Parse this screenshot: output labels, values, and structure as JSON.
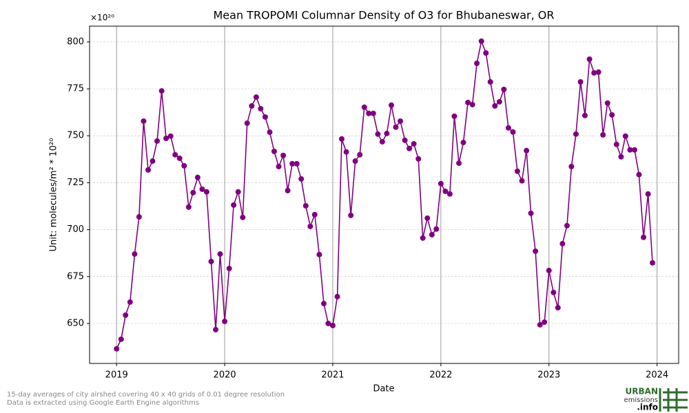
{
  "chart_data": {
    "type": "line",
    "title": "Mean TROPOMI Columnar Density of O3 for Bhubaneswar, OR",
    "x_label": "Date",
    "y_label": "Unit: molecules/m² * 10²⁰",
    "y_offset_label": "×10²⁰",
    "color": "#800080",
    "grid": true,
    "xlim": [
      2018.75,
      2024.2
    ],
    "ylim": [
      628.7,
      808.4
    ],
    "xticks": [
      2019,
      2020,
      2021,
      2022,
      2023,
      2024
    ],
    "yticks": [
      650,
      675,
      700,
      725,
      750,
      775,
      800
    ],
    "x": [
      2019.0,
      2019.042,
      2019.083,
      2019.125,
      2019.167,
      2019.208,
      2019.25,
      2019.292,
      2019.333,
      2019.375,
      2019.417,
      2019.458,
      2019.5,
      2019.542,
      2019.583,
      2019.625,
      2019.667,
      2019.708,
      2019.75,
      2019.792,
      2019.833,
      2019.875,
      2019.917,
      2019.958,
      2020.0,
      2020.042,
      2020.083,
      2020.125,
      2020.167,
      2020.208,
      2020.25,
      2020.292,
      2020.333,
      2020.375,
      2020.417,
      2020.458,
      2020.5,
      2020.542,
      2020.583,
      2020.625,
      2020.667,
      2020.708,
      2020.75,
      2020.792,
      2020.833,
      2020.875,
      2020.917,
      2020.958,
      2021.0,
      2021.042,
      2021.083,
      2021.125,
      2021.167,
      2021.208,
      2021.25,
      2021.292,
      2021.333,
      2021.375,
      2021.417,
      2021.458,
      2021.5,
      2021.542,
      2021.583,
      2021.625,
      2021.667,
      2021.708,
      2021.75,
      2021.792,
      2021.833,
      2021.875,
      2021.917,
      2021.958,
      2022.0,
      2022.042,
      2022.083,
      2022.125,
      2022.167,
      2022.208,
      2022.25,
      2022.292,
      2022.333,
      2022.375,
      2022.417,
      2022.458,
      2022.5,
      2022.542,
      2022.583,
      2022.625,
      2022.667,
      2022.708,
      2022.75,
      2022.792,
      2022.833,
      2022.875,
      2022.917,
      2022.958,
      2023.0,
      2023.042,
      2023.083,
      2023.125,
      2023.167,
      2023.208,
      2023.25,
      2023.292,
      2023.333,
      2023.375,
      2023.417,
      2023.458,
      2023.5,
      2023.542,
      2023.583,
      2023.625,
      2023.667,
      2023.708,
      2023.75,
      2023.792,
      2023.833,
      2023.875,
      2023.917,
      2023.958
    ],
    "values": [
      636.5,
      641.6,
      654.4,
      661.4,
      687.0,
      706.8,
      757.8,
      731.8,
      736.5,
      747.2,
      773.9,
      748.6,
      749.8,
      739.9,
      738.0,
      734.0,
      712.0,
      719.7,
      727.8,
      721.5,
      720.1,
      683.0,
      646.7,
      687.0,
      651.1,
      679.3,
      713.1,
      720.1,
      706.5,
      756.7,
      765.9,
      770.6,
      764.4,
      760.0,
      751.9,
      741.7,
      733.6,
      739.5,
      720.8,
      735.1,
      735.1,
      727.0,
      712.7,
      701.7,
      708.0,
      686.7,
      660.6,
      650.0,
      648.9,
      664.3,
      748.3,
      741.4,
      707.6,
      736.5,
      739.9,
      765.2,
      761.9,
      761.9,
      750.9,
      746.8,
      751.2,
      766.3,
      754.6,
      757.8,
      747.6,
      743.2,
      745.7,
      737.7,
      695.5,
      706.1,
      697.3,
      700.3,
      724.5,
      720.4,
      719.0,
      760.4,
      735.4,
      746.4,
      767.7,
      766.6,
      788.6,
      800.4,
      794.1,
      778.7,
      765.9,
      768.1,
      774.7,
      754.2,
      752.0,
      731.1,
      726.0,
      742.1,
      708.7,
      688.5,
      649.3,
      650.7,
      678.2,
      666.5,
      658.4,
      692.5,
      702.1,
      733.6,
      750.9,
      778.7,
      760.8,
      790.8,
      783.5,
      783.9,
      750.5,
      767.4,
      761.1,
      745.4,
      738.8,
      749.8,
      742.5,
      742.5,
      729.3,
      695.9,
      719.0,
      682.3
    ]
  },
  "notes": [
    "15-day averages of city airshed covering 40 x 40 grids of 0.01 degree resolution",
    "Data is extracted using Google Earth Engine algorithms"
  ],
  "logo": {
    "line1": "URBAN",
    "line2": "emissions",
    "line3": ".info"
  }
}
